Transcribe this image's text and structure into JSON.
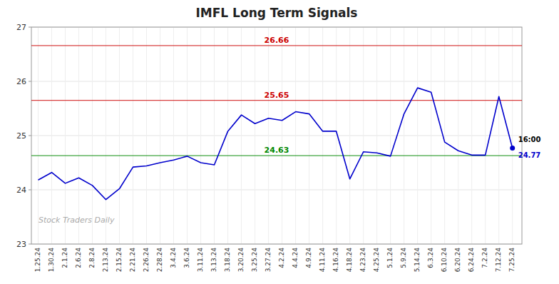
{
  "chart_data": {
    "type": "line",
    "title": "IMFL Long Term Signals",
    "categories": [
      "1.25.24",
      "1.30.24",
      "2.1.24",
      "2.6.24",
      "2.8.24",
      "2.13.24",
      "2.15.24",
      "2.21.24",
      "2.26.24",
      "2.28.24",
      "3.4.24",
      "3.6.24",
      "3.11.24",
      "3.13.24",
      "3.18.24",
      "3.20.24",
      "3.25.24",
      "3.27.24",
      "4.2.24",
      "4.4.24",
      "4.9.24",
      "4.11.24",
      "4.16.24",
      "4.18.24",
      "4.23.24",
      "4.25.24",
      "5.1.24",
      "5.9.24",
      "5.14.24",
      "6.3.24",
      "6.10.24",
      "6.20.24",
      "6.24.24",
      "7.2.24",
      "7.12.24",
      "7.25.24"
    ],
    "values": [
      24.18,
      24.32,
      24.12,
      24.22,
      24.08,
      23.82,
      24.02,
      24.42,
      24.44,
      24.5,
      24.55,
      24.62,
      24.5,
      24.46,
      25.08,
      25.38,
      25.22,
      25.32,
      25.28,
      25.44,
      25.4,
      25.08,
      25.08,
      24.2,
      24.7,
      24.68,
      24.62,
      25.4,
      25.88,
      25.8,
      24.88,
      24.72,
      24.64,
      24.64,
      25.72,
      24.77
    ],
    "color": "#0000cc",
    "reference_lines": [
      {
        "value": 26.66,
        "label": "26.66",
        "color": "#cc0000"
      },
      {
        "value": 25.65,
        "label": "25.65",
        "color": "#cc0000"
      },
      {
        "value": 24.63,
        "label": "24.63",
        "color": "#008800"
      }
    ],
    "annotations": {
      "last_point": "16:00",
      "watermark": "Stock Traders Daily"
    },
    "ylim": [
      23.0,
      27.0
    ],
    "yticks": [
      23,
      24,
      25,
      26,
      27
    ],
    "grid": true
  }
}
